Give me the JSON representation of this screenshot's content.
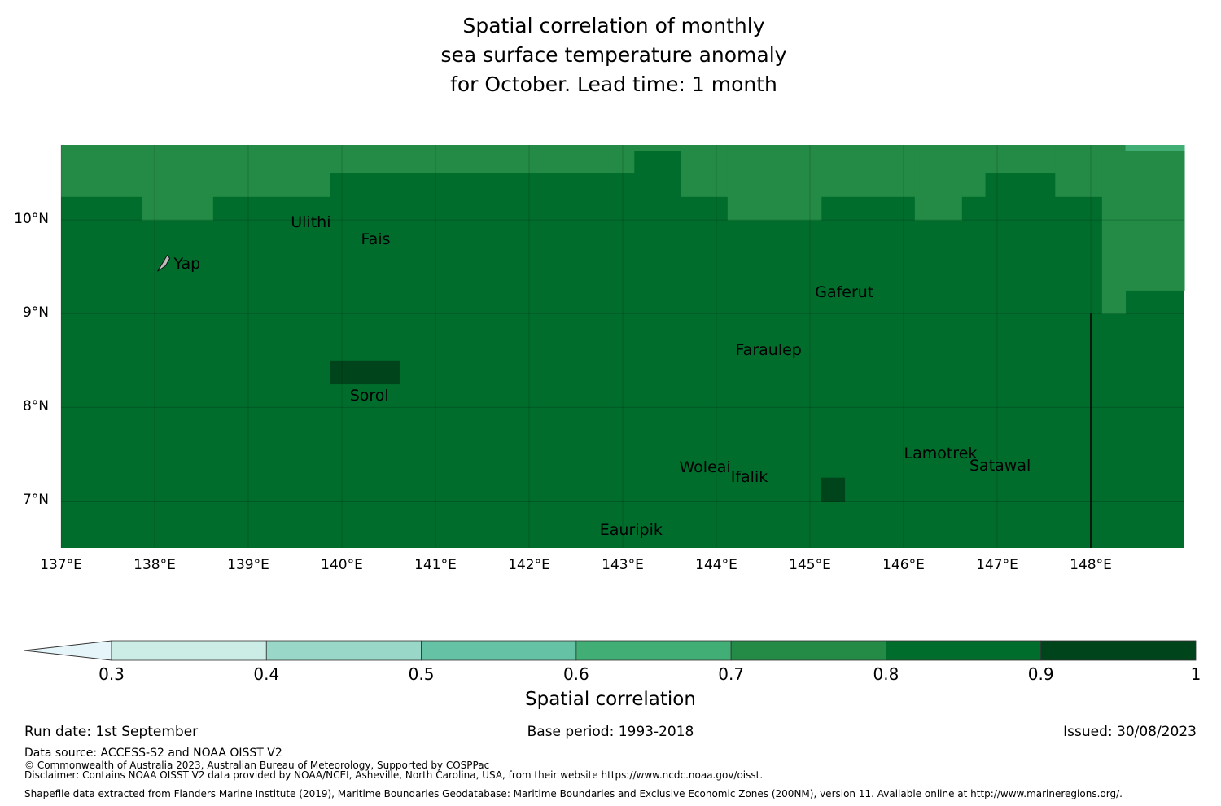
{
  "title": {
    "line1": "Spatial correlation of monthly",
    "line2": "sea surface temperature anomaly",
    "line3": "for October. Lead time: 1 month"
  },
  "map": {
    "lon_ticks": [
      "137°E",
      "138°E",
      "139°E",
      "140°E",
      "141°E",
      "142°E",
      "143°E",
      "144°E",
      "145°E",
      "146°E",
      "147°E",
      "148°E"
    ],
    "lat_ticks": [
      "10°N",
      "9°N",
      "8°N",
      "7°N"
    ],
    "extent": {
      "lon": [
        137,
        149
      ],
      "lat": [
        6.5,
        10.8
      ]
    },
    "base_value": 0.85,
    "regions": [
      {
        "lon": [
          137.0,
          137.87
        ],
        "lat": [
          10.25,
          10.8
        ],
        "value": 0.75
      },
      {
        "lon": [
          137.87,
          138.62
        ],
        "lat": [
          10.0,
          10.8
        ],
        "value": 0.75
      },
      {
        "lon": [
          138.62,
          139.87
        ],
        "lat": [
          10.25,
          10.8
        ],
        "value": 0.75
      },
      {
        "lon": [
          139.87,
          142.12
        ],
        "lat": [
          10.5,
          10.8
        ],
        "value": 0.75
      },
      {
        "lon": [
          142.12,
          143.12
        ],
        "lat": [
          10.5,
          10.8
        ],
        "value": 0.75
      },
      {
        "lon": [
          143.12,
          143.62
        ],
        "lat": [
          10.74,
          10.8
        ],
        "value": 0.75
      },
      {
        "lon": [
          143.62,
          144.12
        ],
        "lat": [
          10.25,
          10.8
        ],
        "value": 0.75
      },
      {
        "lon": [
          144.12,
          145.12
        ],
        "lat": [
          10.0,
          10.8
        ],
        "value": 0.75
      },
      {
        "lon": [
          145.12,
          146.12
        ],
        "lat": [
          10.25,
          10.8
        ],
        "value": 0.75
      },
      {
        "lon": [
          146.12,
          146.62
        ],
        "lat": [
          10.0,
          10.8
        ],
        "value": 0.75
      },
      {
        "lon": [
          146.62,
          146.87
        ],
        "lat": [
          10.25,
          10.8
        ],
        "value": 0.75
      },
      {
        "lon": [
          146.87,
          147.62
        ],
        "lat": [
          10.5,
          10.8
        ],
        "value": 0.75
      },
      {
        "lon": [
          147.62,
          148.12
        ],
        "lat": [
          10.25,
          10.8
        ],
        "value": 0.75
      },
      {
        "lon": [
          148.12,
          149.0
        ],
        "lat": [
          9.25,
          10.8
        ],
        "value": 0.75
      },
      {
        "lon": [
          148.12,
          148.37
        ],
        "lat": [
          9.0,
          9.25
        ],
        "value": 0.75
      },
      {
        "lon": [
          148.37,
          149.0
        ],
        "lat": [
          10.74,
          10.8
        ],
        "value": 0.65
      },
      {
        "lon": [
          139.87,
          140.62
        ],
        "lat": [
          8.25,
          8.5
        ],
        "value": 0.95
      },
      {
        "lon": [
          145.12,
          145.37
        ],
        "lat": [
          7.0,
          7.25
        ],
        "value": 0.95
      }
    ],
    "boundary_line": {
      "lon": 148.0,
      "lat": [
        6.5,
        9.0
      ]
    },
    "islands": [
      {
        "name": "Ulithi",
        "lon": 139.75,
        "lat": 9.97
      },
      {
        "name": "Fais",
        "lon": 140.5,
        "lat": 9.78
      },
      {
        "name": "Yap",
        "lon": 138.1,
        "lat": 9.52
      },
      {
        "name": "Gaferut",
        "lon": 145.35,
        "lat": 9.22
      },
      {
        "name": "Faraulep",
        "lon": 144.5,
        "lat": 8.6
      },
      {
        "name": "Sorol",
        "lon": 140.38,
        "lat": 8.12
      },
      {
        "name": "Woleai",
        "lon": 143.9,
        "lat": 7.35
      },
      {
        "name": "Ifalik",
        "lon": 144.45,
        "lat": 7.25
      },
      {
        "name": "Lamotrek",
        "lon": 146.3,
        "lat": 7.5
      },
      {
        "name": "Satawal",
        "lon": 147.0,
        "lat": 7.37
      },
      {
        "name": "Eauripik",
        "lon": 143.05,
        "lat": 6.68
      }
    ]
  },
  "colorbar": {
    "levels": [
      0.3,
      0.4,
      0.5,
      0.6,
      0.7,
      0.8,
      0.9,
      1
    ],
    "tick_labels": [
      "0.3",
      "0.4",
      "0.5",
      "0.6",
      "0.7",
      "0.8",
      "0.9",
      "1"
    ],
    "colors": [
      "#ccece6",
      "#99d8c9",
      "#66c2a4",
      "#41ae76",
      "#238b45",
      "#006d2c",
      "#00441b"
    ],
    "under_color": "#e5f5f9",
    "label": "Spatial correlation"
  },
  "footer": {
    "run_date": "Run date: 1st September",
    "base_period": "Base period: 1993-2018",
    "issued": "Issued: 30/08/2023",
    "data_source": "Data source: ACCESS-S2 and NOAA OISST V2",
    "copyright": "© Commonwealth of Australia 2023, Australian Bureau of Meteorology, Supported by COSPPac",
    "disclaimer": "Disclaimer: Contains NOAA OISST V2 data provided by NOAA/NCEI, Asheville, North Carolina, USA, from their website https://www.ncdc.noaa.gov/oisst.",
    "shapefile": "Shapefile data extracted from Flanders Marine Institute (2019), Maritime Boundaries Geodatabase: Maritime Boundaries and Exclusive Economic Zones (200NM), version 11. Available online at http://www.marineregions.org/."
  }
}
